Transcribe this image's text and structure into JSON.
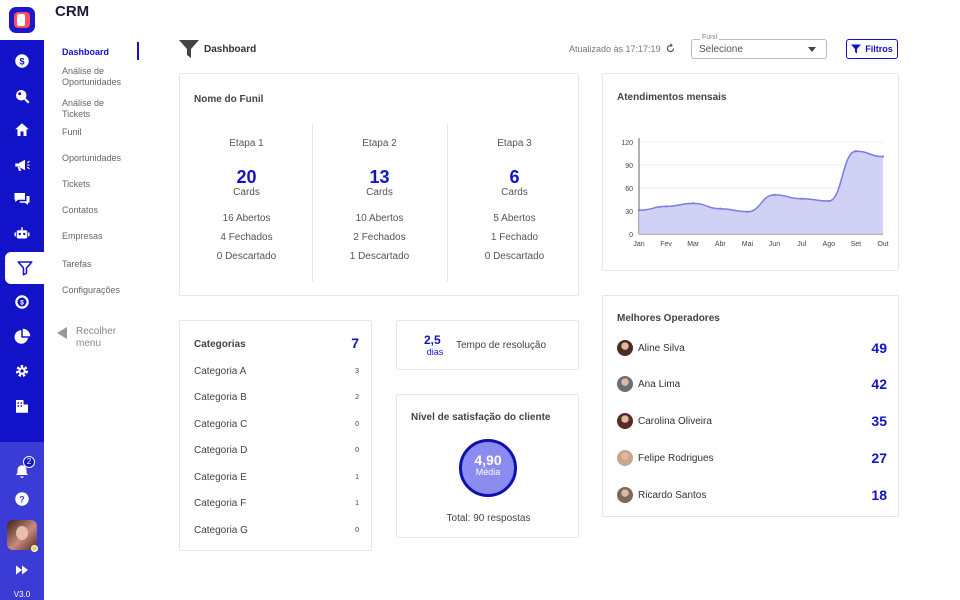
{
  "app": {
    "title": "CRM",
    "version": "V3.0",
    "notifications": "2"
  },
  "rail": {
    "icons": [
      "dollar-icon",
      "search-icon",
      "home-icon",
      "megaphone-icon",
      "chat-icon",
      "robot-icon",
      "funnel-icon",
      "money-icon",
      "pie-chart-icon",
      "gear-icon",
      "building-icon"
    ],
    "active_index": 6
  },
  "subnav": {
    "items": [
      {
        "label": "Dashboard",
        "active": true
      },
      {
        "label": "Análise de Oportunidades"
      },
      {
        "label": "Análise de Tickets"
      },
      {
        "label": "Funil"
      },
      {
        "label": "Oportunidades"
      },
      {
        "label": "Tickets"
      },
      {
        "label": "Contatos"
      },
      {
        "label": "Empresas"
      },
      {
        "label": "Tarefas"
      },
      {
        "label": "Configurações"
      }
    ],
    "collapse_label": "Recolher menu"
  },
  "toolbar": {
    "breadcrumb": "Dashboard",
    "updated_text": "Atualizado às 17:17:19",
    "funnel_select": {
      "label": "Funil",
      "value": "Selecione"
    },
    "filter_label": "Filtros"
  },
  "funnel": {
    "title": "Nome do Funil",
    "stages": [
      {
        "name": "Etapa 1",
        "count": "20",
        "unit": "Cards",
        "open": "16 Abertos",
        "closed": "4 Fechados",
        "discarded": "0 Descartado"
      },
      {
        "name": "Etapa 2",
        "count": "13",
        "unit": "Cards",
        "open": "10 Abertos",
        "closed": "2 Fechados",
        "discarded": "1 Descartado"
      },
      {
        "name": "Etapa 3",
        "count": "6",
        "unit": "Cards",
        "open": "5 Abertos",
        "closed": "1 Fechado",
        "discarded": "0 Descartado"
      }
    ]
  },
  "chart_data": {
    "type": "area",
    "title": "Atendimentos mensais",
    "categories": [
      "Jan",
      "Fev",
      "Mar",
      "Abr",
      "Mai",
      "Jun",
      "Jul",
      "Ago",
      "Set",
      "Out"
    ],
    "series": [
      {
        "values": [
          31,
          36,
          40,
          33,
          29,
          51,
          46,
          43,
          108,
          101
        ]
      }
    ],
    "yticks": [
      0,
      30,
      60,
      90,
      120
    ],
    "ylim": [
      0,
      120
    ],
    "grid": true,
    "color": "#7b7be6"
  },
  "categories": {
    "title": "Categorias",
    "total": "7",
    "items": [
      {
        "name": "Categoria A",
        "value": "3"
      },
      {
        "name": "Categoria B",
        "value": "2"
      },
      {
        "name": "Categoria C",
        "value": "0"
      },
      {
        "name": "Categoria D",
        "value": "0"
      },
      {
        "name": "Categoria E",
        "value": "1"
      },
      {
        "name": "Categoria F",
        "value": "1"
      },
      {
        "name": "Categoria G",
        "value": "0"
      }
    ]
  },
  "resolution": {
    "value": "2,5",
    "unit": "dias",
    "label": "Tempo de resolução"
  },
  "satisfaction": {
    "title": "Nível de satisfação do cliente",
    "value": "4,90",
    "label": "Média",
    "total": "Total: 90 respostas"
  },
  "operators": {
    "title": "Melhores Operadores",
    "items": [
      {
        "name": "Aline Silva",
        "score": "49",
        "avatar_color": "#4a2e22"
      },
      {
        "name": "Ana Lima",
        "score": "42",
        "avatar_color": "#6b6e78"
      },
      {
        "name": "Carolina Oliveira",
        "score": "35",
        "avatar_color": "#5a2c24"
      },
      {
        "name": "Felipe Rodrigues",
        "score": "27",
        "avatar_color": "#c9a58a"
      },
      {
        "name": "Ricardo Santos",
        "score": "18",
        "avatar_color": "#7a6a5e"
      }
    ]
  }
}
